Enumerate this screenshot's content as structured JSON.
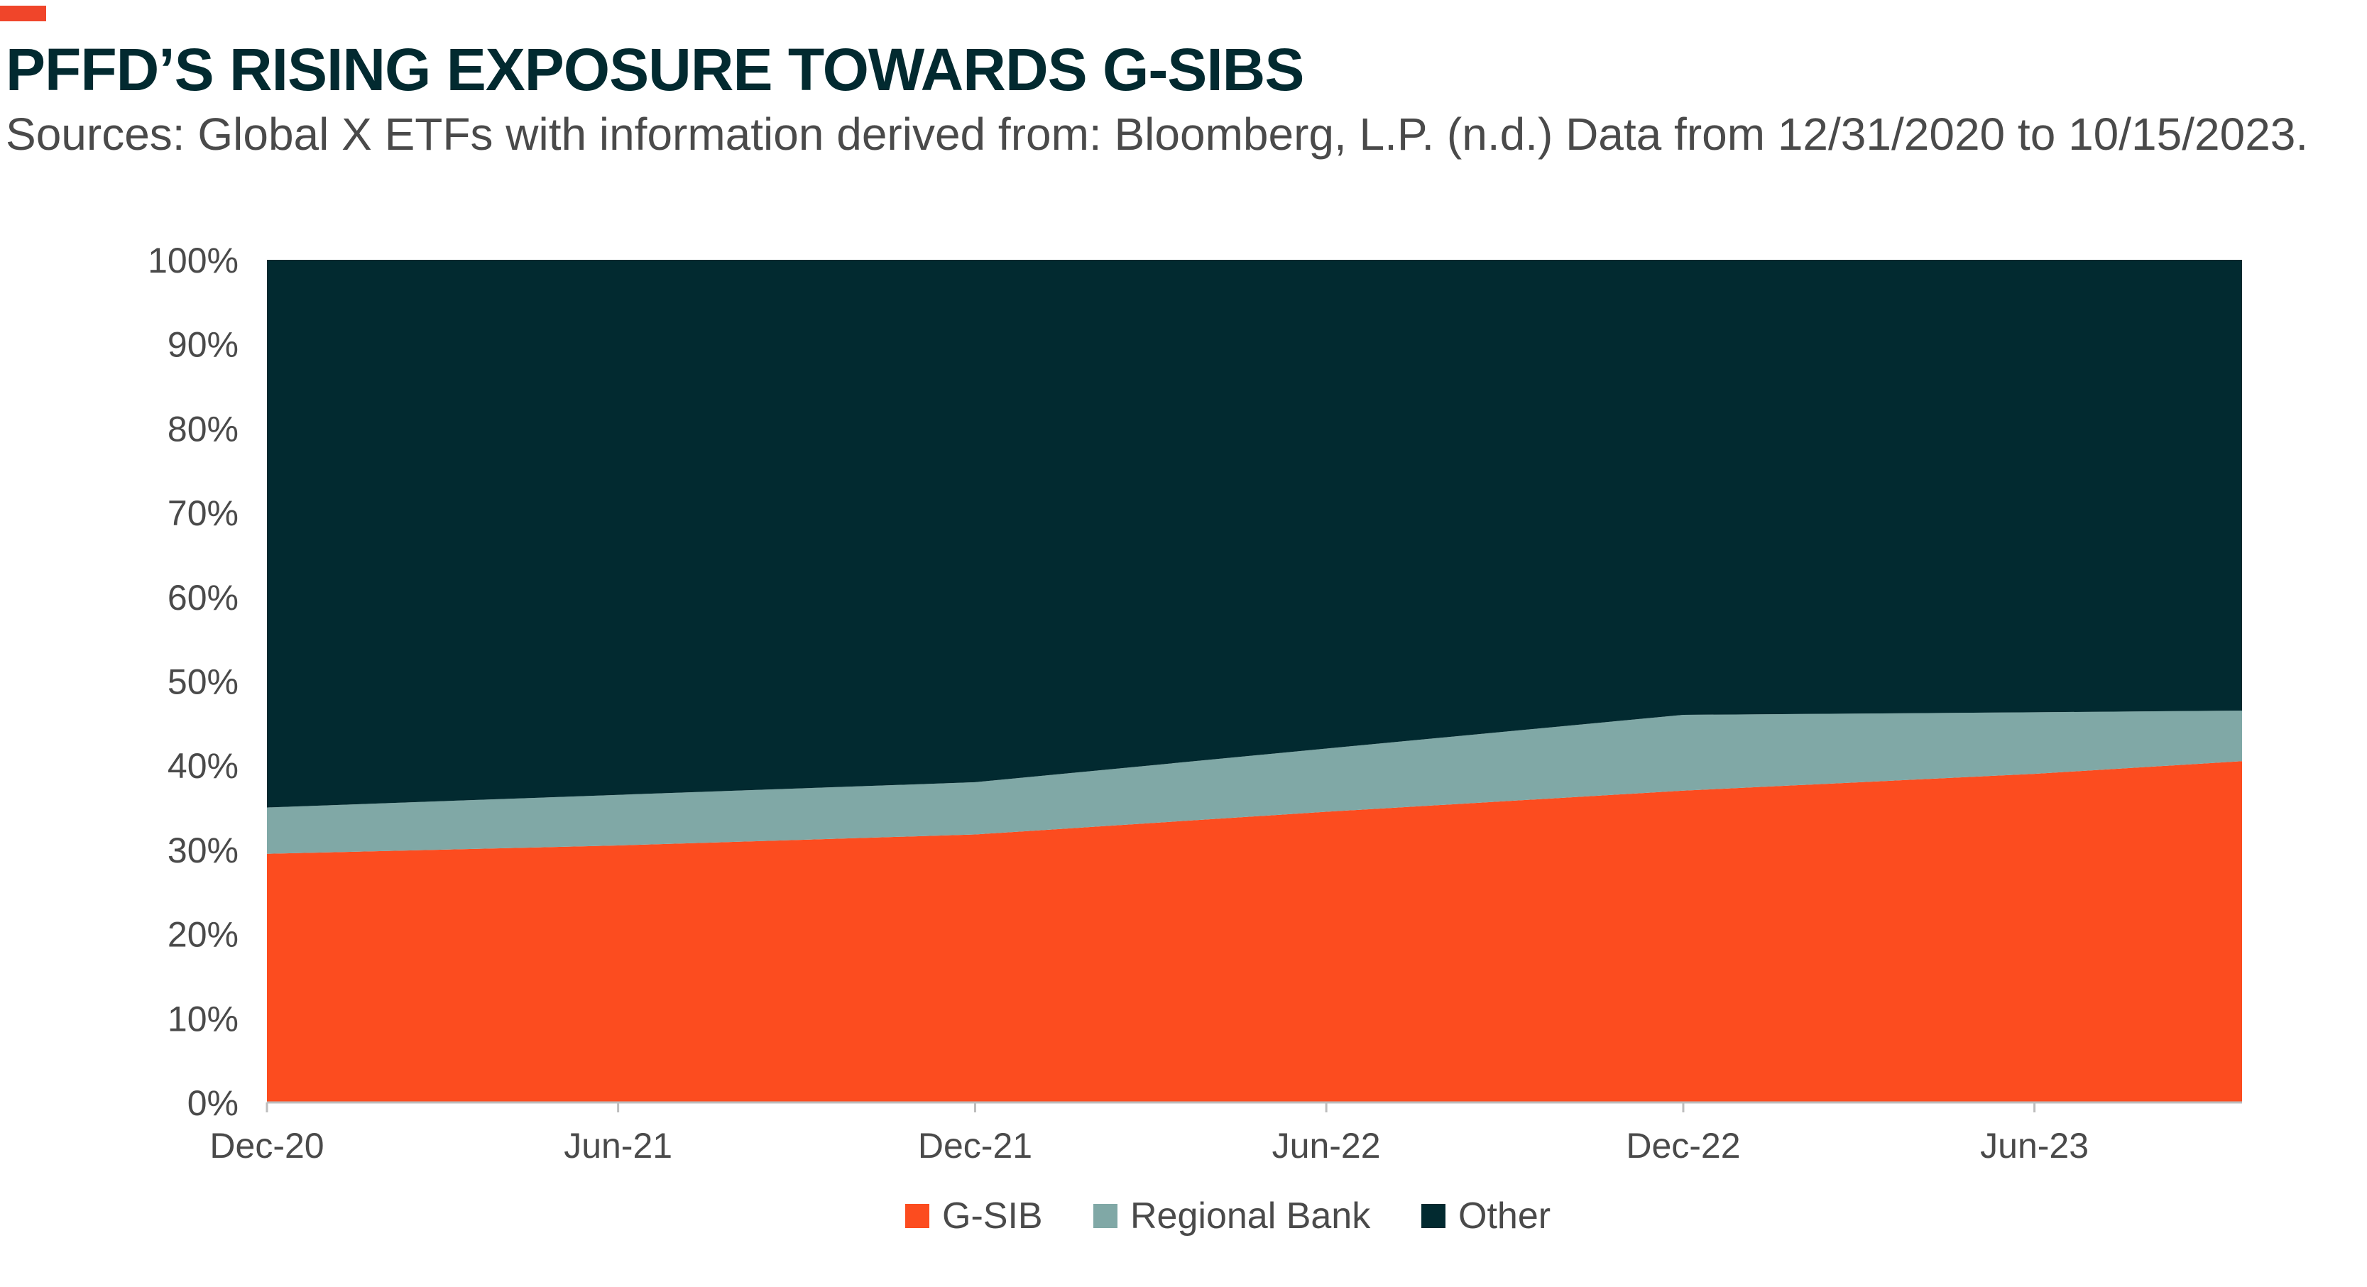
{
  "title": "PFFD’S RISING EXPOSURE TOWARDS G-SIBS",
  "subtitle": "Sources: Global X ETFs with information derived from: Bloomberg, L.P. (n.d.) Data from 12/31/2020 to 10/15/2023.",
  "colors": {
    "accent": "#f0452a",
    "gsib": "#fc4c1f",
    "regional_bank": "#80a8a6",
    "other": "#022a30"
  },
  "chart_data": {
    "type": "area",
    "stacked": true,
    "x": [
      "2020-12-31",
      "2021-06-30",
      "2021-12-31",
      "2022-06-30",
      "2022-12-31",
      "2023-06-30",
      "2023-10-15"
    ],
    "x_tick_labels": [
      "Dec-20",
      "Jun-21",
      "Dec-21",
      "Jun-22",
      "Dec-22",
      "Jun-23"
    ],
    "y_tick_labels": [
      "0%",
      "10%",
      "20%",
      "30%",
      "40%",
      "50%",
      "60%",
      "70%",
      "80%",
      "90%",
      "100%"
    ],
    "ylim": [
      0,
      100
    ],
    "grid": false,
    "legend_position": "bottom",
    "series": [
      {
        "name": "G-SIB",
        "color": "#fc4c1f",
        "values": [
          29.5,
          30.5,
          31.8,
          34.5,
          37.0,
          39.0,
          40.5
        ]
      },
      {
        "name": "Regional Bank",
        "color": "#80a8a6",
        "values": [
          5.5,
          6.0,
          6.2,
          7.5,
          9.0,
          7.3,
          6.0
        ]
      },
      {
        "name": "Other",
        "color": "#022a30",
        "values": [
          65.0,
          63.5,
          62.0,
          58.0,
          54.0,
          53.7,
          53.5
        ]
      }
    ]
  }
}
